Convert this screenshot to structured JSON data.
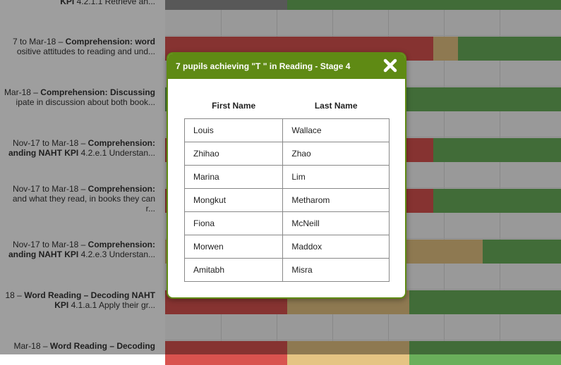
{
  "background": {
    "rows": [
      {
        "line1_prefix": "",
        "line1_bold": "KPI",
        "line1_rest": " 4.2.1.1 Retrieve an...",
        "line2_prefix": "",
        "line2_bold": "",
        "line2_rest": ""
      },
      {
        "line1_prefix": "7 to Mar-18 – ",
        "line1_bold": "Comprehension: word",
        "line1_rest": "",
        "line2_prefix": "",
        "line2_bold": "",
        "line2_rest": "ositive attitudes to reading and und..."
      },
      {
        "line1_prefix": "Mar-18 – ",
        "line1_bold": "Comprehension: Discussing",
        "line1_rest": "",
        "line2_prefix": "",
        "line2_bold": "",
        "line2_rest": "ipate in discussion about both book..."
      },
      {
        "line1_prefix": "Nov-17 to Mar-18 – ",
        "line1_bold": "Comprehension:",
        "line1_rest": "",
        "line2_prefix": "",
        "line2_bold": "anding NAHT KPI",
        "line2_rest": " 4.2.e.1 Understan..."
      },
      {
        "line1_prefix": "Nov-17 to Mar-18 – ",
        "line1_bold": "Comprehension:",
        "line1_rest": "",
        "line2_prefix": "",
        "line2_bold": "",
        "line2_rest": "and what they read, in books they can",
        "line3": "r..."
      },
      {
        "line1_prefix": "Nov-17 to Mar-18 – ",
        "line1_bold": "Comprehension:",
        "line1_rest": "",
        "line2_prefix": "",
        "line2_bold": "anding NAHT KPI",
        "line2_rest": " 4.2.e.3 Understan..."
      },
      {
        "line1_prefix": "18 – ",
        "line1_bold": "Word Reading – Decoding NAHT",
        "line1_rest": "",
        "line2_prefix": "",
        "line2_bold": "KPI",
        "line2_rest": " 4.1.a.1 Apply their gr..."
      },
      {
        "line1_prefix": "Mar-18 – ",
        "line1_bold": "Word Reading – Decoding",
        "line1_rest": "",
        "line2_prefix": "",
        "line2_bold": "",
        "line2_rest": ""
      }
    ]
  },
  "modal": {
    "title": "7 pupils achieving \"T \" in Reading - Stage 4",
    "close_icon": "close-x-icon",
    "columns": [
      "First Name",
      "Last Name"
    ],
    "pupils": [
      {
        "first": "Louis",
        "last": "Wallace"
      },
      {
        "first": "Zhihao",
        "last": "Zhao"
      },
      {
        "first": "Marina",
        "last": "Lim"
      },
      {
        "first": "Mongkut",
        "last": "Metharom"
      },
      {
        "first": "Fiona",
        "last": "McNeill"
      },
      {
        "first": "Morwen",
        "last": "Maddox"
      },
      {
        "first": "Amitabh",
        "last": "Misra"
      }
    ]
  },
  "colors": {
    "header_green": "#5f8a14",
    "bar_red": "#d9534f",
    "bar_tan": "#e5c483",
    "bar_green": "#6aaf5b",
    "bar_grey": "#8e8e8e"
  }
}
